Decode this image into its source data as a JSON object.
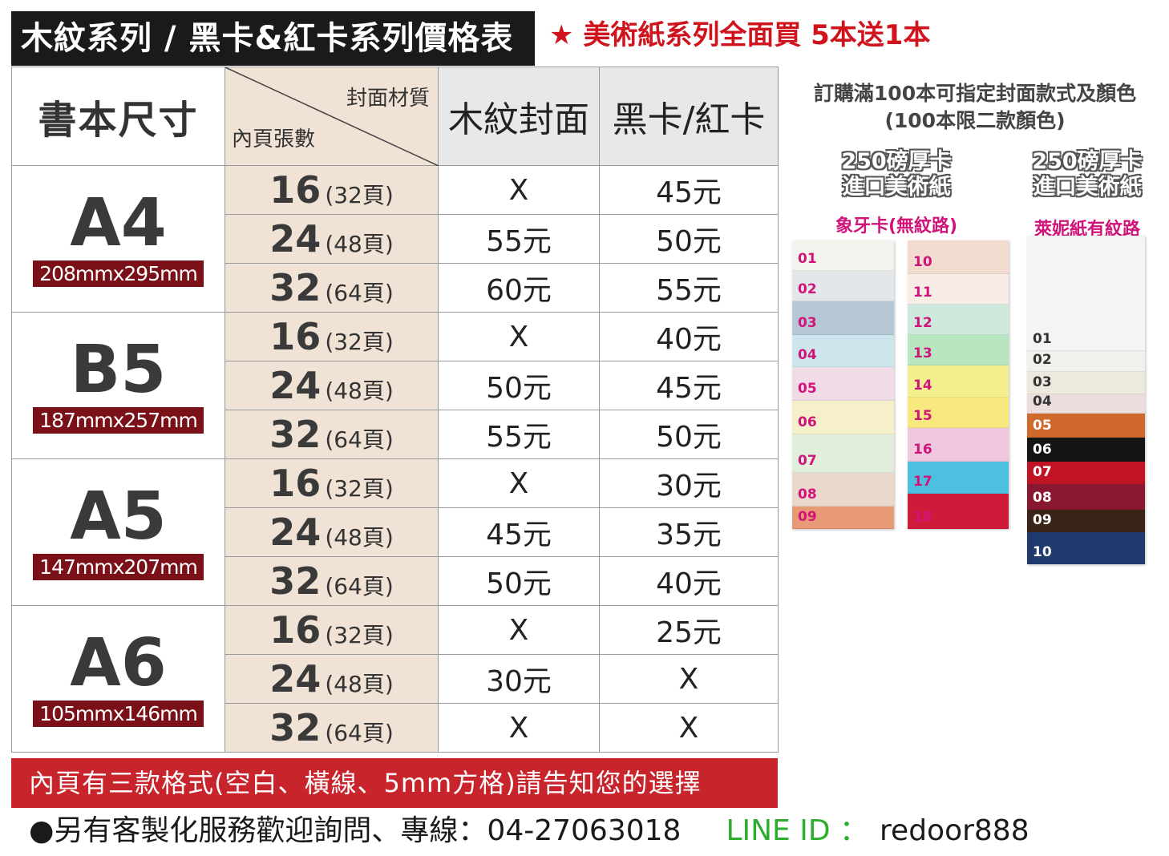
{
  "header": {
    "title": "木紋系列 / 黑卡&紅卡系列價格表",
    "promo": "★ 美術紙系列全面買 5本送1本"
  },
  "table": {
    "size_header": "書本尺寸",
    "diag_top": "封面材質",
    "diag_bottom": "內頁張數",
    "col_wood": "木紋封面",
    "col_black": "黑卡/紅卡",
    "sizes": [
      {
        "name": "A4",
        "dim": "208mmx295mm",
        "rows": [
          {
            "sheets": "16",
            "pages": "(32頁)",
            "wood": "X",
            "black": "45元"
          },
          {
            "sheets": "24",
            "pages": "(48頁)",
            "wood": "55元",
            "black": "50元"
          },
          {
            "sheets": "32",
            "pages": "(64頁)",
            "wood": "60元",
            "black": "55元"
          }
        ]
      },
      {
        "name": "B5",
        "dim": "187mmx257mm",
        "rows": [
          {
            "sheets": "16",
            "pages": "(32頁)",
            "wood": "X",
            "black": "40元"
          },
          {
            "sheets": "24",
            "pages": "(48頁)",
            "wood": "50元",
            "black": "45元"
          },
          {
            "sheets": "32",
            "pages": "(64頁)",
            "wood": "55元",
            "black": "50元"
          }
        ]
      },
      {
        "name": "A5",
        "dim": "147mmx207mm",
        "rows": [
          {
            "sheets": "16",
            "pages": "(32頁)",
            "wood": "X",
            "black": "30元"
          },
          {
            "sheets": "24",
            "pages": "(48頁)",
            "wood": "45元",
            "black": "35元"
          },
          {
            "sheets": "32",
            "pages": "(64頁)",
            "wood": "50元",
            "black": "40元"
          }
        ]
      },
      {
        "name": "A6",
        "dim": "105mmx146mm",
        "rows": [
          {
            "sheets": "16",
            "pages": "(32頁)",
            "wood": "X",
            "black": "25元"
          },
          {
            "sheets": "24",
            "pages": "(48頁)",
            "wood": "30元",
            "black": "X"
          },
          {
            "sheets": "32",
            "pages": "(64頁)",
            "wood": "X",
            "black": "X"
          }
        ]
      }
    ]
  },
  "note_bar": "內頁有三款格式(空白、橫線、5mm方格)請告知您的選擇",
  "footer": {
    "contact": "●另有客製化服務歡迎詢問、專線：04-27063018",
    "line_label": "LINE ID ：",
    "line_id": "redoor888"
  },
  "order_note": {
    "line1": "訂購滿100本可指定封面款式及顏色",
    "line2": "(100本限二款顏色)"
  },
  "swatches": {
    "ivory": {
      "head1": "250磅厚卡",
      "head2": "進口美術紙",
      "sub": "象牙卡(無紋路)",
      "left": [
        {
          "num": "01",
          "color": "#f3f3ee"
        },
        {
          "num": "02",
          "color": "#e4e7ea"
        },
        {
          "num": "03",
          "color": "#b6c8d6"
        },
        {
          "num": "04",
          "color": "#cde6ee"
        },
        {
          "num": "05",
          "color": "#efdce6"
        },
        {
          "num": "06",
          "color": "#f5f0c9"
        },
        {
          "num": "07",
          "color": "#e1eedc"
        },
        {
          "num": "08",
          "color": "#ead8cc"
        },
        {
          "num": "09",
          "color": "#e89a76"
        }
      ],
      "right": [
        {
          "num": "10",
          "color": "#f1dccf"
        },
        {
          "num": "11",
          "color": "#f7ece6"
        },
        {
          "num": "12",
          "color": "#cde9dc"
        },
        {
          "num": "13",
          "color": "#b7e6c0"
        },
        {
          "num": "14",
          "color": "#f4f08f"
        },
        {
          "num": "15",
          "color": "#f7e980"
        },
        {
          "num": "16",
          "color": "#f0c8de"
        },
        {
          "num": "17",
          "color": "#4ec0df"
        },
        {
          "num": "18",
          "color": "#d01a3a"
        }
      ]
    },
    "linen": {
      "head1": "250磅厚卡",
      "head2": "進口美術紙",
      "sub": "萊妮紙有紋路",
      "items": [
        {
          "num": "01",
          "color": "#f4f4f4"
        },
        {
          "num": "02",
          "color": "#f0f0ec"
        },
        {
          "num": "03",
          "color": "#ede9de"
        },
        {
          "num": "04",
          "color": "#ecdcdc"
        },
        {
          "num": "05",
          "color": "#d06a2c"
        },
        {
          "num": "06",
          "color": "#151515"
        },
        {
          "num": "07",
          "color": "#c01424"
        },
        {
          "num": "08",
          "color": "#8a1830"
        },
        {
          "num": "09",
          "color": "#3a2418"
        },
        {
          "num": "10",
          "color": "#213a6e"
        }
      ]
    }
  }
}
